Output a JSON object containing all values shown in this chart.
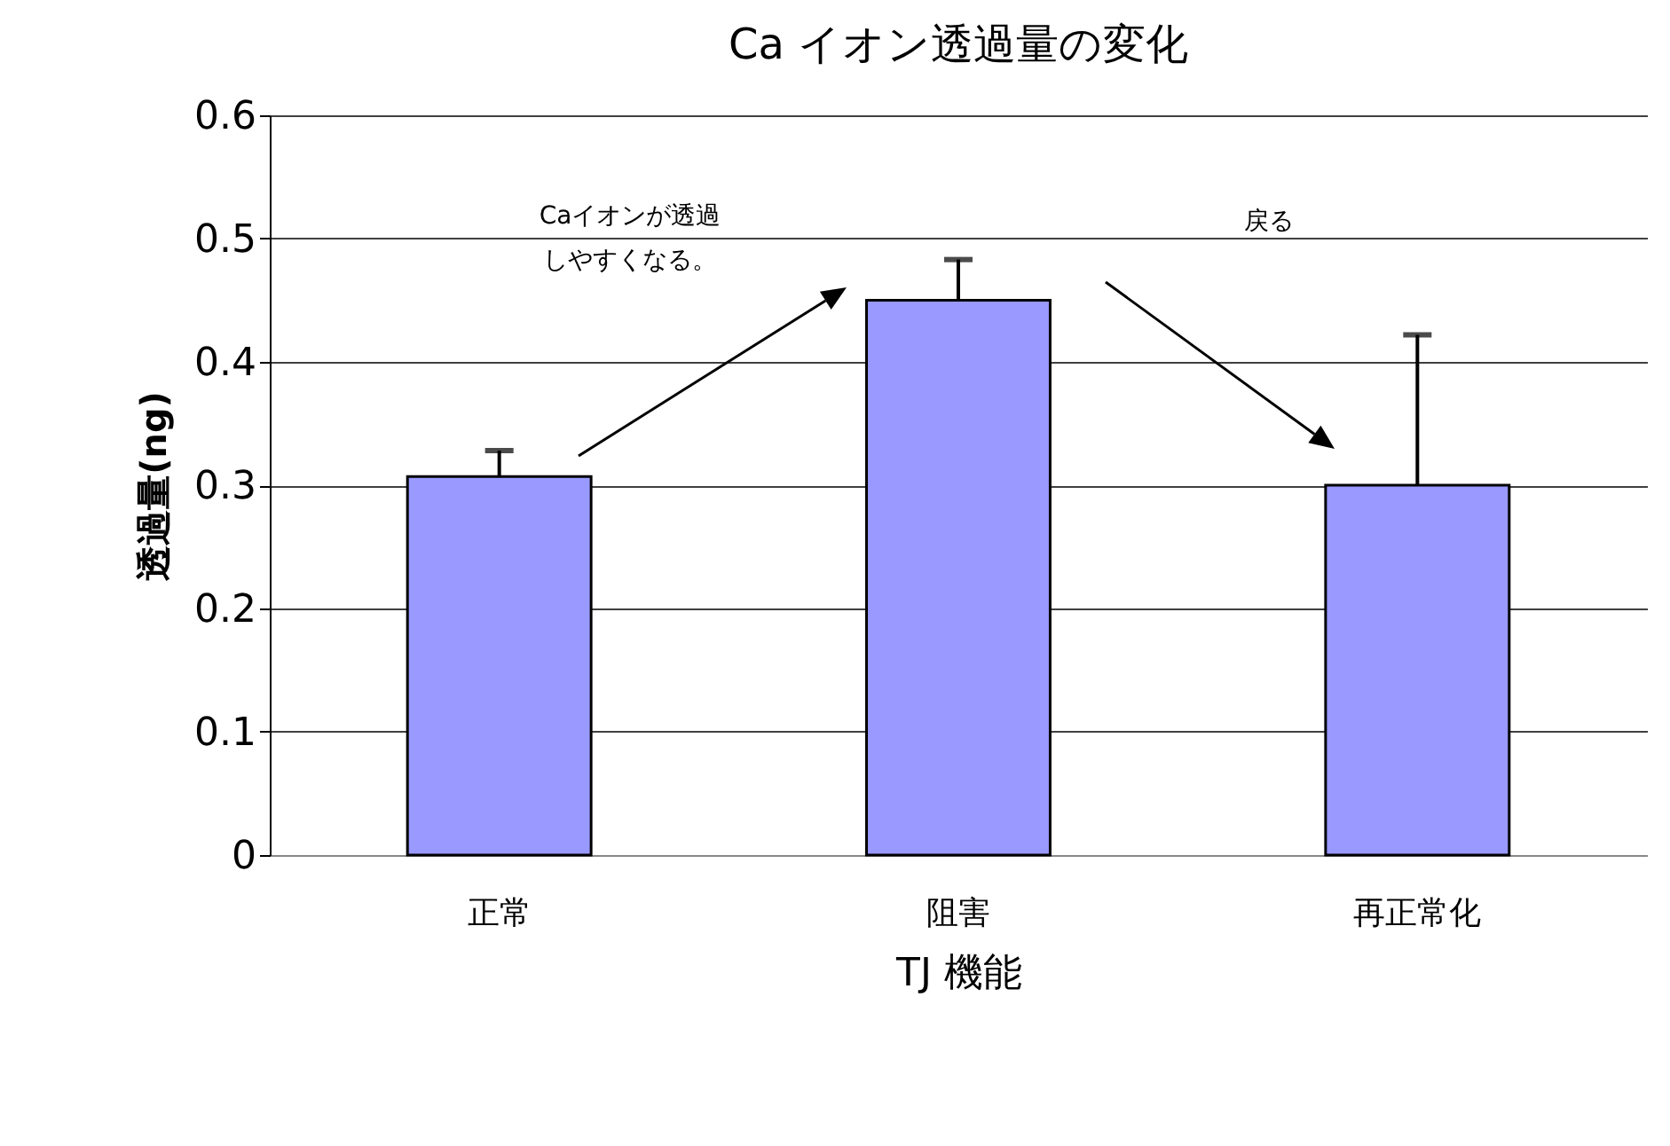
{
  "chart_data": {
    "type": "bar",
    "title": "Ca イオン透過量の変化",
    "xlabel": "TJ 機能",
    "ylabel": "透過量(ng)",
    "categories": [
      "正常",
      "阻害",
      "再正常化"
    ],
    "values": [
      0.307,
      0.45,
      0.3
    ],
    "errors": [
      [
        0.307,
        0.328
      ],
      [
        0.45,
        0.483
      ],
      [
        0.3,
        0.422
      ]
    ],
    "color": "#9999ff",
    "annotations": [
      "Caイオンが透過しやすくなる。",
      "戻る"
    ],
    "ylim": [
      0,
      0.6
    ],
    "yticks": [
      0,
      0.1,
      0.2,
      0.3,
      0.4,
      0.5,
      0.6
    ],
    "grid": "y"
  }
}
